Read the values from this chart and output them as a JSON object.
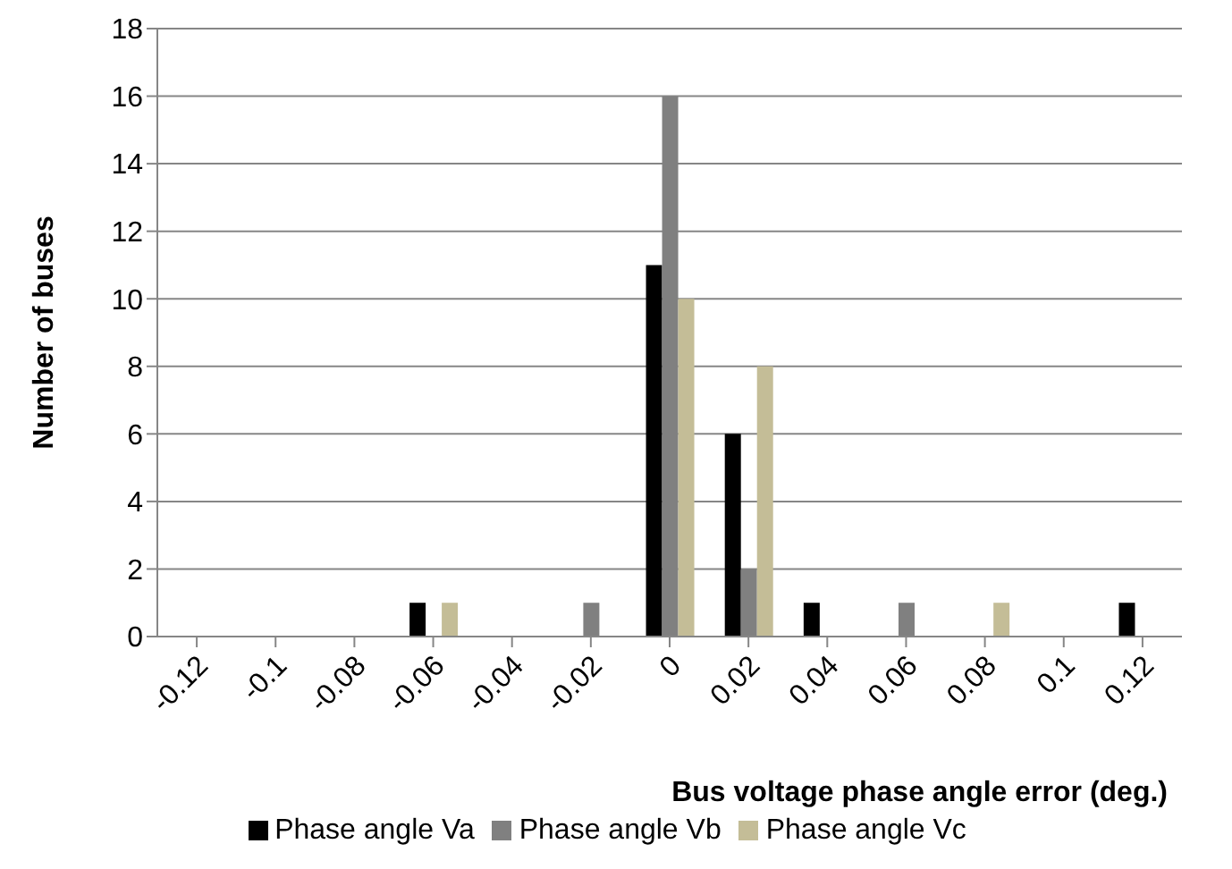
{
  "chart_data": {
    "type": "bar",
    "xlabel": "Bus voltage phase angle error (deg.)",
    "ylabel": "Number of buses",
    "categories": [
      "-0.12",
      "-0.1",
      "-0.08",
      "-0.06",
      "-0.04",
      "-0.02",
      "0",
      "0.02",
      "0.04",
      "0.06",
      "0.08",
      "0.1",
      "0.12"
    ],
    "series": [
      {
        "name": "Phase angle Va",
        "color": "#000000",
        "values": [
          0,
          0,
          0,
          1,
          0,
          0,
          11,
          6,
          1,
          0,
          0,
          0,
          1
        ]
      },
      {
        "name": "Phase angle Vb",
        "color": "#808080",
        "values": [
          0,
          0,
          0,
          0,
          0,
          1,
          16,
          2,
          0,
          1,
          0,
          0,
          0
        ]
      },
      {
        "name": "Phase angle Vc",
        "color": "#c4bd97",
        "values": [
          0,
          0,
          0,
          1,
          0,
          0,
          10,
          8,
          0,
          0,
          1,
          0,
          0
        ]
      }
    ],
    "ylim": [
      0,
      18
    ],
    "yticks": [
      0,
      2,
      4,
      6,
      8,
      10,
      12,
      14,
      16,
      18
    ],
    "grid": "y",
    "legend": "bottom"
  }
}
